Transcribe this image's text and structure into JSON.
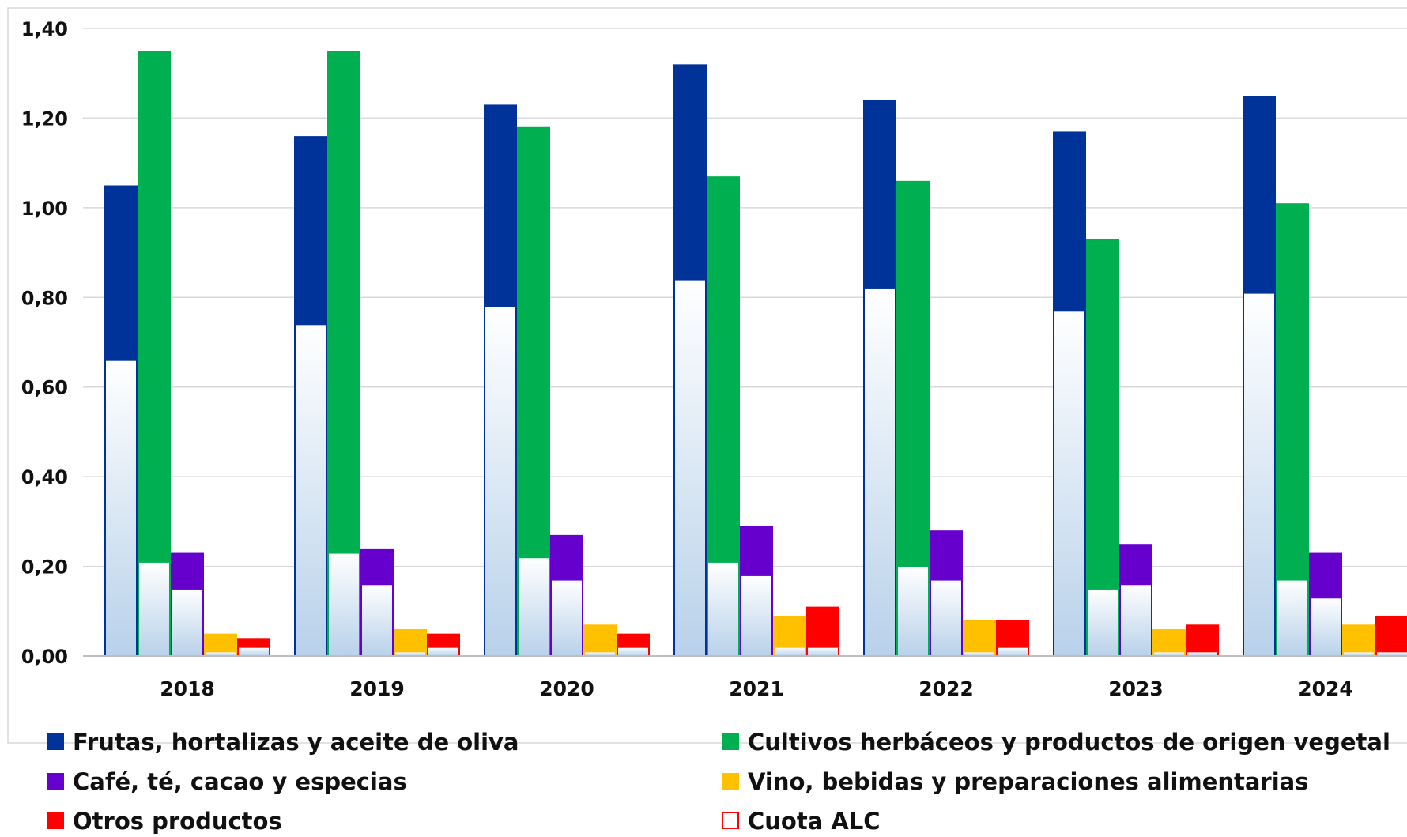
{
  "chart_data": {
    "type": "bar",
    "categories": [
      "2018",
      "2019",
      "2020",
      "2021",
      "2022",
      "2023",
      "2024"
    ],
    "ylim": [
      0,
      1.4
    ],
    "yticks": [
      "0,00",
      "0,20",
      "0,40",
      "0,60",
      "0,80",
      "1,00",
      "1,20",
      "1,40"
    ],
    "grid": true,
    "legend_position": "bottom",
    "series": [
      {
        "name": "Frutas, hortalizas y aceite de oliva",
        "color": "#003399",
        "values": [
          1.05,
          1.16,
          1.23,
          1.32,
          1.24,
          1.17,
          1.25
        ],
        "quota": [
          0.66,
          0.74,
          0.78,
          0.84,
          0.82,
          0.77,
          0.81
        ]
      },
      {
        "name": "Cultivos herbáceos y productos de origen vegetal",
        "color": "#00b050",
        "values": [
          1.35,
          1.35,
          1.18,
          1.07,
          1.06,
          0.93,
          1.01
        ],
        "quota": [
          0.21,
          0.23,
          0.22,
          0.21,
          0.2,
          0.15,
          0.17
        ]
      },
      {
        "name": "Café, té, cacao y especias",
        "color": "#6600cc",
        "values": [
          0.23,
          0.24,
          0.27,
          0.29,
          0.28,
          0.25,
          0.23
        ],
        "quota": [
          0.15,
          0.16,
          0.17,
          0.18,
          0.17,
          0.16,
          0.13
        ]
      },
      {
        "name": "Vino, bebidas y preparaciones alimentarias",
        "color": "#ffc000",
        "values": [
          0.05,
          0.06,
          0.07,
          0.09,
          0.08,
          0.06,
          0.07
        ],
        "quota": [
          0.01,
          0.01,
          0.01,
          0.02,
          0.01,
          0.01,
          0.01
        ]
      },
      {
        "name": "Otros productos",
        "color": "#ff0000",
        "values": [
          0.04,
          0.05,
          0.05,
          0.11,
          0.08,
          0.07,
          0.09
        ],
        "quota": [
          0.02,
          0.02,
          0.02,
          0.02,
          0.02,
          0.01,
          0.01
        ]
      }
    ],
    "quota_series": {
      "name": "Cuota ALC",
      "color": "#c5d9f1",
      "border": "#ff0000"
    }
  }
}
